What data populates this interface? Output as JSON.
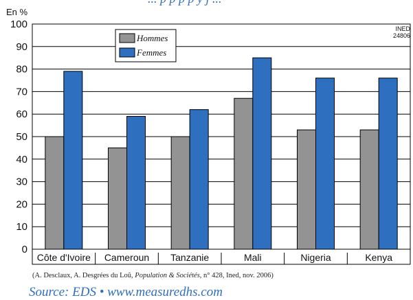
{
  "colors": {
    "hommes": "#939393",
    "femmes": "#2f6fc0",
    "source_text": "#2f6fc0"
  },
  "top_fragment": "... p p p p y j ...",
  "ined_tag": {
    "line1": "INED",
    "line2": "24806"
  },
  "chart_data": {
    "type": "bar",
    "ylabel": "En %",
    "ylim": [
      0,
      100
    ],
    "yticks": [
      "0",
      "10",
      "20",
      "30",
      "40",
      "50",
      "60",
      "70",
      "80",
      "90",
      "100"
    ],
    "grid": true,
    "legend_position": "top-left",
    "categories": [
      "Côte d'Ivoire",
      "Cameroun",
      "Tanzanie",
      "Mali",
      "Nigeria",
      "Kenya"
    ],
    "series": [
      {
        "name": "Hommes",
        "values": [
          50,
          45,
          50,
          67,
          53,
          53
        ]
      },
      {
        "name": "Femmes",
        "values": [
          79,
          59,
          62,
          85,
          76,
          76
        ]
      }
    ]
  },
  "citation": {
    "prefix": "(A. Desclaux, A. Desgrées du Loû, ",
    "journal": "Population & Sociétés,",
    "suffix": " n° 428, Ined, nov. 2006)"
  },
  "source": "Source: EDS • www.measuredhs.com"
}
